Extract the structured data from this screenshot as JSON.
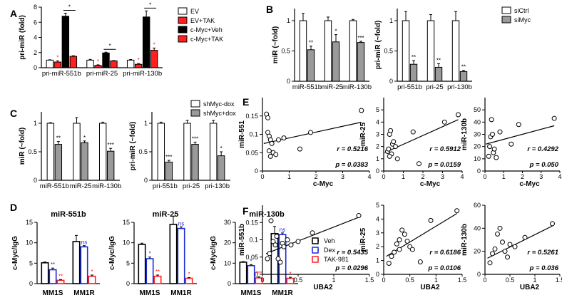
{
  "panels": [
    {
      "letter": "A"
    },
    {
      "letter": "B"
    },
    {
      "letter": "C"
    },
    {
      "letter": "D"
    },
    {
      "letter": "E"
    },
    {
      "letter": "F"
    }
  ],
  "chart_data": [
    {
      "id": "A",
      "type": "bar",
      "ylabel": "pri-miR (fold)",
      "ylim": [
        0,
        8
      ],
      "yticks": [
        0,
        2,
        4,
        6,
        8
      ],
      "categories": [
        "pri-miR-551b",
        "pri-miR-25",
        "pri-miR-130b"
      ],
      "series": [
        {
          "name": "EV",
          "color": "#ffffff",
          "values": [
            1.0,
            1.0,
            1.0
          ],
          "errors": [
            0.05,
            0.1,
            0.08
          ]
        },
        {
          "name": "EV+TAK",
          "color": "#ff2020",
          "values": [
            0.75,
            0.3,
            0.45
          ],
          "errors": [
            0.15,
            0.08,
            0.1
          ]
        },
        {
          "name": "c-Myc+Veh",
          "color": "#000000",
          "values": [
            6.8,
            1.95,
            6.7
          ],
          "errors": [
            0.4,
            0.1,
            0.8
          ]
        },
        {
          "name": "c-Myc+TAK",
          "color": "#ff2020",
          "values": [
            1.5,
            0.9,
            2.3
          ],
          "errors": [
            0.08,
            0.05,
            0.3
          ]
        }
      ],
      "sig_small": [
        [
          "*",
          1,
          0
        ],
        [
          "*",
          1,
          1
        ],
        [
          "*",
          1,
          2
        ],
        [
          "*",
          3,
          2
        ]
      ],
      "brackets": [
        [
          "*",
          0
        ],
        [
          "*",
          1
        ],
        [
          "*",
          2
        ]
      ]
    },
    {
      "id": "B1",
      "type": "bar",
      "ylabel": "miR (~fold)",
      "ylim": [
        0,
        1.2
      ],
      "yticks": [
        0.0,
        0.5,
        1.0
      ],
      "categories": [
        "miR-551b",
        "miR-25",
        "miR-130b"
      ],
      "series": [
        {
          "name": "siCtrl",
          "color": "#ffffff",
          "values": [
            1.0,
            1.0,
            1.0
          ],
          "errors": [
            0.12,
            0.06,
            0.02
          ]
        },
        {
          "name": "siMyc",
          "color": "#9a9a9a",
          "values": [
            0.52,
            0.65,
            0.64
          ],
          "errors": [
            0.06,
            0.12,
            0.02
          ]
        }
      ],
      "sig": [
        "**",
        "*",
        "***"
      ]
    },
    {
      "id": "B2",
      "type": "bar",
      "ylabel": "pri-miR (~fold)",
      "ylim": [
        0,
        1.2
      ],
      "yticks": [
        0.0,
        0.5,
        1.0
      ],
      "categories": [
        "pri-551b",
        "pri-25",
        "pri-130b"
      ],
      "series": [
        {
          "name": "siCtrl",
          "color": "#ffffff",
          "values": [
            1.0,
            1.0,
            1.0
          ],
          "errors": [
            0.15,
            0.1,
            0.15
          ]
        },
        {
          "name": "siMyc",
          "color": "#9a9a9a",
          "values": [
            0.28,
            0.23,
            0.16
          ],
          "errors": [
            0.06,
            0.06,
            0.02
          ]
        }
      ],
      "sig": [
        "**",
        "**",
        "**"
      ]
    },
    {
      "id": "C1",
      "type": "bar",
      "ylabel": "miR (~fold)",
      "ylim": [
        0,
        1.2
      ],
      "yticks": [
        0.0,
        0.5,
        1.0
      ],
      "categories": [
        "miR-551b",
        "miR-25",
        "miR-130b"
      ],
      "series": [
        {
          "name": "shMyc-dox",
          "color": "#ffffff",
          "values": [
            1.0,
            1.0,
            1.0
          ],
          "errors": [
            0.01,
            0.1,
            0.02
          ]
        },
        {
          "name": "shMyc+dox",
          "color": "#9a9a9a",
          "values": [
            0.63,
            0.66,
            0.51
          ],
          "errors": [
            0.05,
            0.03,
            0.05
          ]
        }
      ],
      "sig": [
        "**",
        "*",
        "***"
      ]
    },
    {
      "id": "C2",
      "type": "bar",
      "ylabel": "pri-miR (~fold)",
      "ylim": [
        0,
        1.2
      ],
      "yticks": [
        0.0,
        0.5,
        1.0
      ],
      "categories": [
        "pri-551b",
        "pri-25",
        "pri-130b"
      ],
      "series": [
        {
          "name": "shMyc-dox",
          "color": "#ffffff",
          "values": [
            1.0,
            1.0,
            1.0
          ],
          "errors": [
            0.02,
            0.05,
            0.05
          ]
        },
        {
          "name": "shMyc+dox",
          "color": "#9a9a9a",
          "values": [
            0.32,
            0.63,
            0.43
          ],
          "errors": [
            0.03,
            0.04,
            0.07
          ]
        }
      ],
      "sig": [
        "***",
        "***",
        "*"
      ]
    },
    {
      "id": "D1",
      "type": "bar",
      "title": "miR-551b",
      "ylabel": "c-Myc/IgG",
      "ylim": [
        0,
        15
      ],
      "yticks": [
        0,
        5,
        10,
        15
      ],
      "categories": [
        "MM1S",
        "MM1R"
      ],
      "series": [
        {
          "name": "Veh",
          "color": "#000000",
          "values": [
            5.1,
            10.3
          ],
          "errors": [
            0.2,
            1.5
          ]
        },
        {
          "name": "Dex",
          "color": "#1a2bd6",
          "values": [
            3.4,
            9.0
          ],
          "errors": [
            0.4,
            0.3
          ]
        },
        {
          "name": "TAK-981",
          "color": "#ff2020",
          "values": [
            0.8,
            1.8
          ],
          "errors": [
            0.2,
            0.3
          ]
        }
      ],
      "sig": [
        [
          "**",
          "**"
        ],
        [
          "ns",
          "*"
        ]
      ]
    },
    {
      "id": "D2",
      "type": "bar",
      "title": "miR-25",
      "ylabel": "c-Myc/IgG",
      "ylim": [
        0,
        15
      ],
      "yticks": [
        0,
        5,
        10,
        15
      ],
      "categories": [
        "MM1S",
        "MM1R"
      ],
      "series": [
        {
          "name": "Veh",
          "color": "#000000",
          "values": [
            9.6,
            14.5
          ],
          "errors": [
            0.3,
            2.0
          ]
        },
        {
          "name": "Dex",
          "color": "#1a2bd6",
          "values": [
            6.1,
            13.5
          ],
          "errors": [
            0.4,
            0.4
          ]
        },
        {
          "name": "TAK-981",
          "color": "#ff2020",
          "values": [
            1.8,
            1.3
          ],
          "errors": [
            0.3,
            0.2
          ]
        }
      ],
      "sig": [
        [
          "*",
          "**"
        ],
        [
          "ns",
          "*"
        ]
      ]
    },
    {
      "id": "D3",
      "type": "bar",
      "title": "miR-130b",
      "ylabel": "c-Myc/IgG",
      "ylim": [
        0,
        30
      ],
      "yticks": [
        0,
        10,
        20,
        30
      ],
      "categories": [
        "MM1S",
        "MM1R"
      ],
      "series": [
        {
          "name": "Veh",
          "color": "#000000",
          "values": [
            10.5,
            24.5
          ],
          "errors": [
            0.3,
            3.5
          ]
        },
        {
          "name": "Dex",
          "color": "#1a2bd6",
          "values": [
            8.8,
            24.0
          ],
          "errors": [
            0.5,
            0.8
          ]
        },
        {
          "name": "TAK-981",
          "color": "#ff2020",
          "values": [
            2.8,
            2.6
          ],
          "errors": [
            0.5,
            0.5
          ]
        }
      ],
      "sig": [
        [
          "*",
          "***"
        ],
        [
          "ns",
          "*"
        ]
      ]
    },
    {
      "id": "E1",
      "type": "scatter",
      "xlabel": "c-Myc",
      "ylabel": "miR-551",
      "xlim": [
        0,
        4
      ],
      "ylim": [
        0,
        0.2
      ],
      "xticks": [
        0,
        1,
        2,
        3,
        4
      ],
      "yticks": [
        0.0,
        0.05,
        0.1,
        0.15
      ],
      "r": "r = 0.5216",
      "p": "p = 0.0383",
      "fit": [
        [
          0.05,
          0.075
        ],
        [
          3.7,
          0.133
        ]
      ],
      "points": [
        [
          0.15,
          0.155
        ],
        [
          0.2,
          0.145
        ],
        [
          0.2,
          0.105
        ],
        [
          0.25,
          0.095
        ],
        [
          0.3,
          0.085
        ],
        [
          0.35,
          0.075
        ],
        [
          0.25,
          0.055
        ],
        [
          0.3,
          0.04
        ],
        [
          0.4,
          0.05
        ],
        [
          0.5,
          0.045
        ],
        [
          0.6,
          0.085
        ],
        [
          0.8,
          0.09
        ],
        [
          1.4,
          0.06
        ],
        [
          1.8,
          0.105
        ],
        [
          3.7,
          0.165
        ]
      ]
    },
    {
      "id": "E2",
      "type": "scatter",
      "xlabel": "c-Myc",
      "ylabel": "miR-25",
      "xlim": [
        0,
        4
      ],
      "ylim": [
        0,
        6
      ],
      "xticks": [
        0,
        1,
        2,
        3,
        4
      ],
      "yticks": [
        0,
        1,
        2,
        3,
        4,
        5
      ],
      "r": "r = 0.5912",
      "p": "p = 0.0159",
      "fit": [
        [
          0.05,
          1.5
        ],
        [
          3.8,
          4.2
        ]
      ],
      "points": [
        [
          0.2,
          1.6
        ],
        [
          0.25,
          1.8
        ],
        [
          0.3,
          3.0
        ],
        [
          0.35,
          3.3
        ],
        [
          0.4,
          1.4
        ],
        [
          0.45,
          2.2
        ],
        [
          0.5,
          2.4
        ],
        [
          0.6,
          2.0
        ],
        [
          0.7,
          1.0
        ],
        [
          0.3,
          1.2
        ],
        [
          1.5,
          3.2
        ],
        [
          1.8,
          0.6
        ],
        [
          3.1,
          4.0
        ],
        [
          3.8,
          4.6
        ]
      ]
    },
    {
      "id": "E3",
      "type": "scatter",
      "xlabel": "c-Myc",
      "ylabel": "miR-130b",
      "xlim": [
        0,
        4
      ],
      "ylim": [
        0,
        60
      ],
      "xticks": [
        0,
        1,
        2,
        3,
        4
      ],
      "yticks": [
        0,
        10,
        20,
        30,
        40,
        50
      ],
      "r": "r = 0.4292",
      "p": "p = 0.050",
      "fit": [
        [
          0.05,
          22
        ],
        [
          3.7,
          37
        ]
      ],
      "points": [
        [
          0.2,
          12
        ],
        [
          0.25,
          20
        ],
        [
          0.3,
          28
        ],
        [
          0.35,
          42
        ],
        [
          0.4,
          30
        ],
        [
          0.45,
          15
        ],
        [
          0.5,
          18
        ],
        [
          0.6,
          11
        ],
        [
          0.8,
          32
        ],
        [
          1.4,
          22
        ],
        [
          1.8,
          38
        ],
        [
          3.7,
          43
        ]
      ]
    },
    {
      "id": "F1",
      "type": "scatter",
      "xlabel": "UBA2",
      "ylabel": "miR-551b",
      "xlim": [
        0,
        1.5
      ],
      "ylim": [
        0,
        0.2
      ],
      "xticks": [
        0.0,
        0.5,
        1.0,
        1.5
      ],
      "yticks": [
        0.0,
        0.05,
        0.1,
        0.15
      ],
      "r": "r = 0.5435",
      "p": "p = 0.0296",
      "fit": [
        [
          0.05,
          0.06
        ],
        [
          1.35,
          0.165
        ]
      ],
      "points": [
        [
          0.07,
          0.045
        ],
        [
          0.1,
          0.06
        ],
        [
          0.12,
          0.155
        ],
        [
          0.15,
          0.095
        ],
        [
          0.18,
          0.085
        ],
        [
          0.2,
          0.11
        ],
        [
          0.22,
          0.045
        ],
        [
          0.25,
          0.035
        ],
        [
          0.28,
          0.09
        ],
        [
          0.3,
          0.08
        ],
        [
          0.35,
          0.1
        ],
        [
          0.4,
          0.085
        ],
        [
          0.5,
          0.095
        ],
        [
          0.7,
          0.12
        ],
        [
          1.35,
          0.17
        ]
      ]
    },
    {
      "id": "F2",
      "type": "scatter",
      "xlabel": "UBA2",
      "ylabel": "miR-25",
      "xlim": [
        0,
        1.5
      ],
      "ylim": [
        0,
        5
      ],
      "xticks": [
        0.0,
        0.5,
        1.0,
        1.5
      ],
      "yticks": [
        0,
        1,
        2,
        3,
        4,
        5
      ],
      "r": "r = 0.6186",
      "p": "p = 0.0106",
      "fit": [
        [
          0.05,
          1.3
        ],
        [
          1.4,
          4.4
        ]
      ],
      "points": [
        [
          0.1,
          0.8
        ],
        [
          0.15,
          1.3
        ],
        [
          0.2,
          1.6
        ],
        [
          0.25,
          2.2
        ],
        [
          0.3,
          2.5
        ],
        [
          0.35,
          3.2
        ],
        [
          0.4,
          2.9
        ],
        [
          0.45,
          2.4
        ],
        [
          0.5,
          2.0
        ],
        [
          0.55,
          1.8
        ],
        [
          0.7,
          0.9
        ],
        [
          0.9,
          3.9
        ],
        [
          1.4,
          4.6
        ],
        [
          0.3,
          1.8
        ]
      ]
    },
    {
      "id": "F3",
      "type": "scatter",
      "xlabel": "UBA2",
      "ylabel": "miR-130b",
      "xlim": [
        0,
        1.5
      ],
      "ylim": [
        0,
        60
      ],
      "xticks": [
        0.0,
        0.5,
        1.0,
        1.5
      ],
      "yticks": [
        0,
        20,
        40,
        60
      ],
      "r": "r = 0.5261",
      "p": "p = 0.036",
      "fit": [
        [
          0.05,
          14
        ],
        [
          1.35,
          42
        ]
      ],
      "points": [
        [
          0.1,
          10
        ],
        [
          0.15,
          18
        ],
        [
          0.2,
          22
        ],
        [
          0.25,
          35
        ],
        [
          0.3,
          40
        ],
        [
          0.35,
          28
        ],
        [
          0.4,
          20
        ],
        [
          0.45,
          15
        ],
        [
          0.5,
          26
        ],
        [
          0.6,
          24
        ],
        [
          0.8,
          32
        ],
        [
          1.35,
          44
        ]
      ]
    }
  ]
}
